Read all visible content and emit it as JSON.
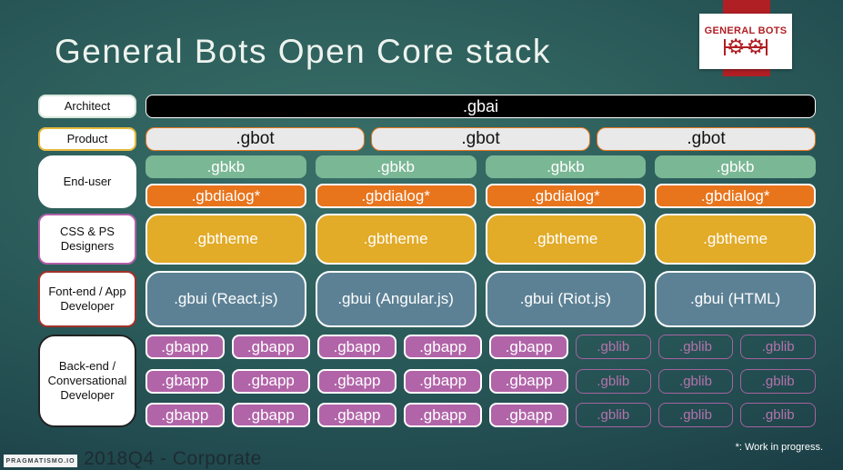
{
  "title": "General Bots Open Core stack",
  "logo": {
    "text": "GENERAL BOTS",
    "gear_icon": "gear-icon"
  },
  "stack": {
    "architect": {
      "label": "Architect",
      "items": [
        ".gbai"
      ]
    },
    "product": {
      "label": "Product",
      "items": [
        ".gbot",
        ".gbot",
        ".gbot"
      ]
    },
    "enduser": {
      "label": "End-user",
      "gbkb": [
        ".gbkb",
        ".gbkb",
        ".gbkb",
        ".gbkb"
      ],
      "gbdialog": [
        ".gbdialog*",
        ".gbdialog*",
        ".gbdialog*",
        ".gbdialog*"
      ]
    },
    "css": {
      "label": "CSS & PS Designers",
      "items": [
        ".gbtheme",
        ".gbtheme",
        ".gbtheme",
        ".gbtheme"
      ]
    },
    "frontend": {
      "label": "Font-end / App Developer",
      "items": [
        ".gbui (React.js)",
        ".gbui (Angular.js)",
        ".gbui (Riot.js)",
        ".gbui (HTML)"
      ]
    },
    "backend": {
      "label": "Back-end / Conversational Developer",
      "rows": [
        {
          "gbapp": [
            ".gbapp",
            ".gbapp",
            ".gbapp",
            ".gbapp",
            ".gbapp"
          ],
          "gblib": [
            ".gblib",
            ".gblib",
            ".gblib"
          ]
        },
        {
          "gbapp": [
            ".gbapp",
            ".gbapp",
            ".gbapp",
            ".gbapp",
            ".gbapp"
          ],
          "gblib": [
            ".gblib",
            ".gblib",
            ".gblib"
          ]
        },
        {
          "gbapp": [
            ".gbapp",
            ".gbapp",
            ".gbapp",
            ".gbapp",
            ".gbapp"
          ],
          "gblib": [
            ".gblib",
            ".gblib",
            ".gblib"
          ]
        }
      ]
    }
  },
  "footer": {
    "brand": "PRAGMATISMO.IO",
    "edition": "2018Q4 - Corporate",
    "note": "*: Work in progress."
  },
  "colors": {
    "background_center": "#3a6f68",
    "background_edge": "#152f3a",
    "gbai": "#000000",
    "gbot_fill": "#e9e9e9",
    "gbot_border": "#e2751d",
    "gbkb": "#7ab795",
    "gbdialog": "#e8741c",
    "gbtheme": "#e2ab28",
    "gbui": "#5c8195",
    "gbapp": "#b164a8",
    "gblib_border": "#a463a0",
    "ribbon_red": "#b01f24",
    "title_text": "#eef3ee"
  }
}
